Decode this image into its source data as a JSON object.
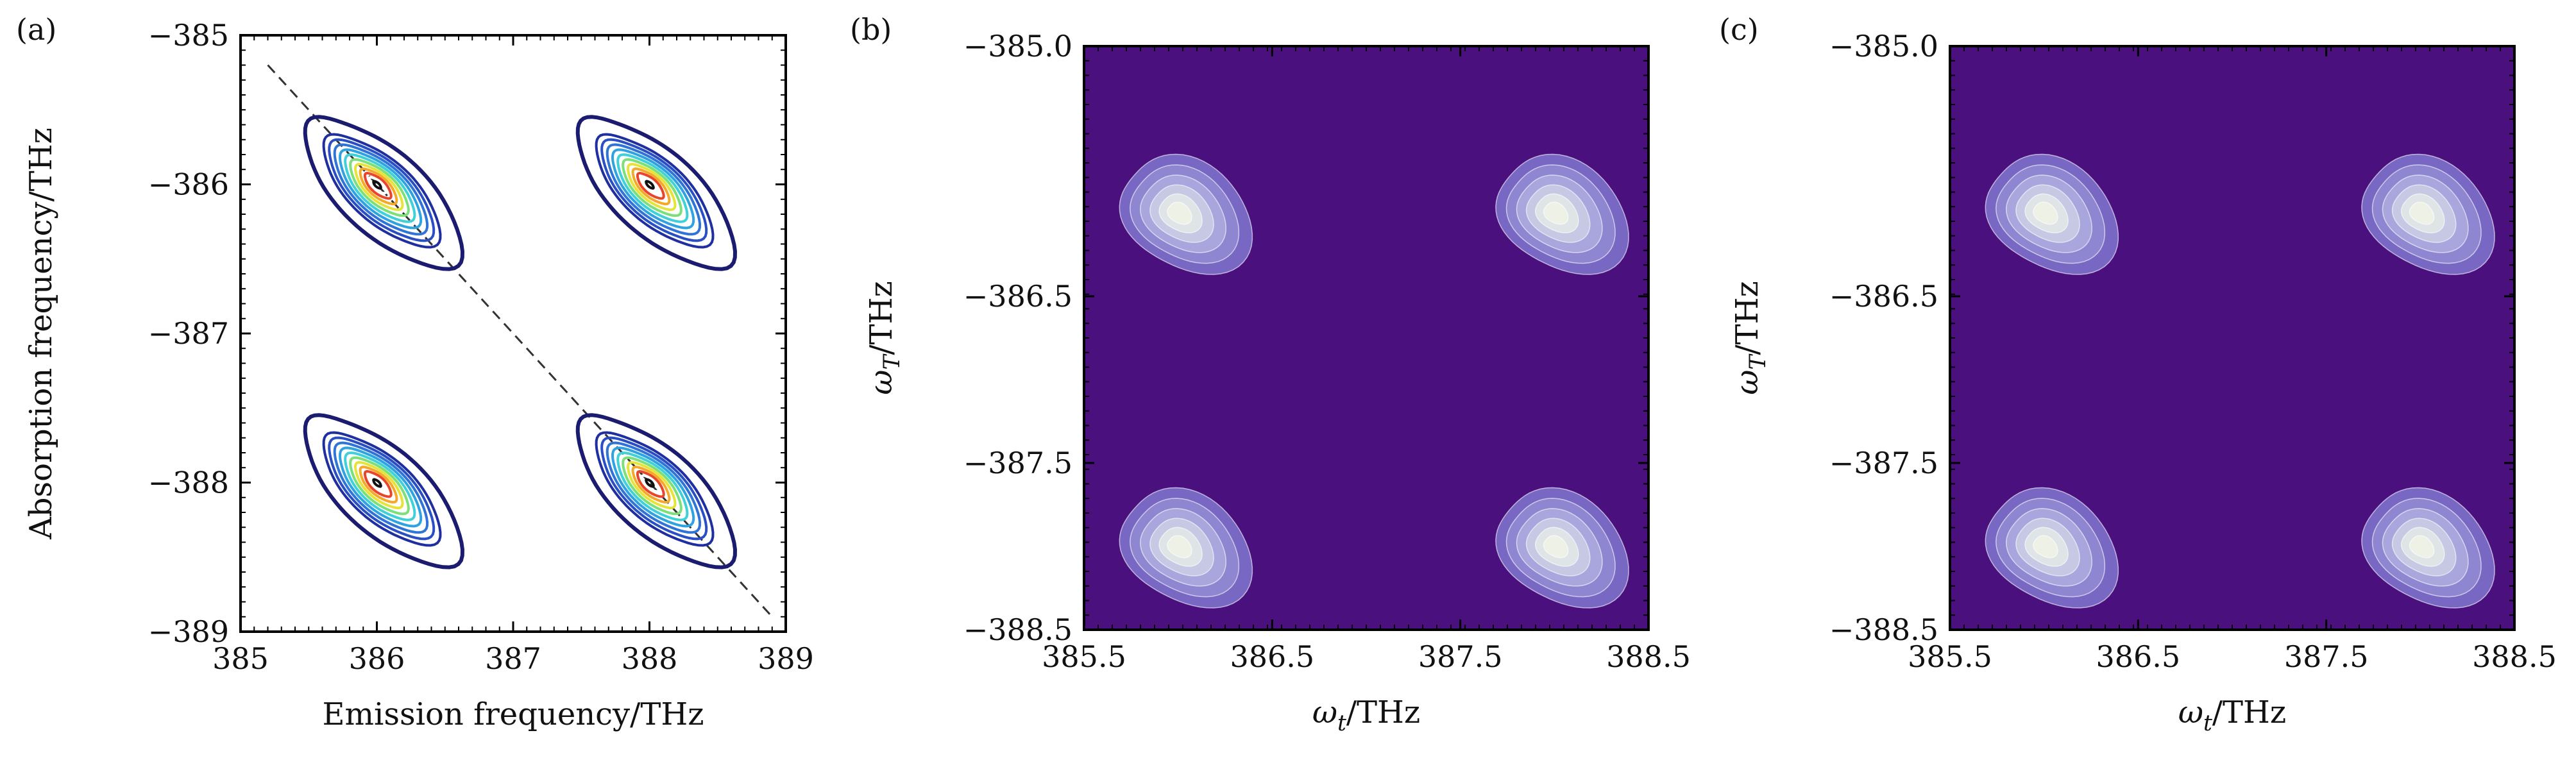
{
  "chart_data": [
    {
      "panel": "(a)",
      "type": "contour",
      "xlabel": "Emission frequency/THz",
      "ylabel": "Absorption frequency/THz",
      "xlim": [
        385,
        389
      ],
      "ylim": [
        -389,
        -385
      ],
      "xticks": [
        "385",
        "386",
        "387",
        "388",
        "389"
      ],
      "yticks": [
        "−385",
        "−386",
        "−387",
        "−388",
        "−389"
      ],
      "diagonal": {
        "from": [
          385.2,
          -385.2
        ],
        "to": [
          388.9,
          -388.9
        ],
        "style": "dashed"
      },
      "peaks": [
        {
          "x": 386,
          "y": -386
        },
        {
          "x": 388,
          "y": -386
        },
        {
          "x": 386,
          "y": -388
        },
        {
          "x": 388,
          "y": -388
        }
      ],
      "contour_colors": [
        "#1b1b70",
        "#1f2fa0",
        "#2a4fc4",
        "#2f74d6",
        "#2fa2e0",
        "#3fd0d8",
        "#7be07a",
        "#e6e33a",
        "#f4a92a",
        "#e8452a",
        "#ffffff",
        "#111111"
      ]
    },
    {
      "panel": "(b)",
      "type": "filled-contour",
      "xlabel": "ωt/THz",
      "ylabel": "ωT/THz",
      "xlim": [
        385.5,
        388.5
      ],
      "ylim": [
        -388.5,
        -385.0
      ],
      "xticks": [
        "385.5",
        "386.5",
        "387.5",
        "388.5"
      ],
      "yticks": [
        "−385.0",
        "−386.5",
        "−387.5",
        "−388.5"
      ],
      "peaks": [
        {
          "x": 386.0,
          "y": -386.0
        },
        {
          "x": 388.0,
          "y": -386.0
        },
        {
          "x": 386.0,
          "y": -388.0
        },
        {
          "x": 388.0,
          "y": -388.0
        }
      ],
      "background_color": "#4a117e",
      "level_colors": [
        "#7868c4",
        "#8f86d2",
        "#a9a6de",
        "#c6c8e4",
        "#dfe4e6",
        "#eef1e6"
      ]
    },
    {
      "panel": "(c)",
      "type": "filled-contour",
      "xlabel": "ωt/THz",
      "ylabel": "ωT/THz",
      "xlim": [
        385.5,
        388.5
      ],
      "ylim": [
        -388.5,
        -385.0
      ],
      "xticks": [
        "385.5",
        "386.5",
        "387.5",
        "388.5"
      ],
      "yticks": [
        "−385.0",
        "−386.5",
        "−387.5",
        "−388.5"
      ],
      "peaks": [
        {
          "x": 386.0,
          "y": -386.0
        },
        {
          "x": 388.0,
          "y": -386.0
        },
        {
          "x": 386.0,
          "y": -388.0
        },
        {
          "x": 388.0,
          "y": -388.0
        }
      ],
      "background_color": "#4a117e",
      "level_colors": [
        "#7868c4",
        "#8f86d2",
        "#a9a6de",
        "#c6c8e4",
        "#dfe4e6",
        "#eef1e6"
      ]
    }
  ]
}
